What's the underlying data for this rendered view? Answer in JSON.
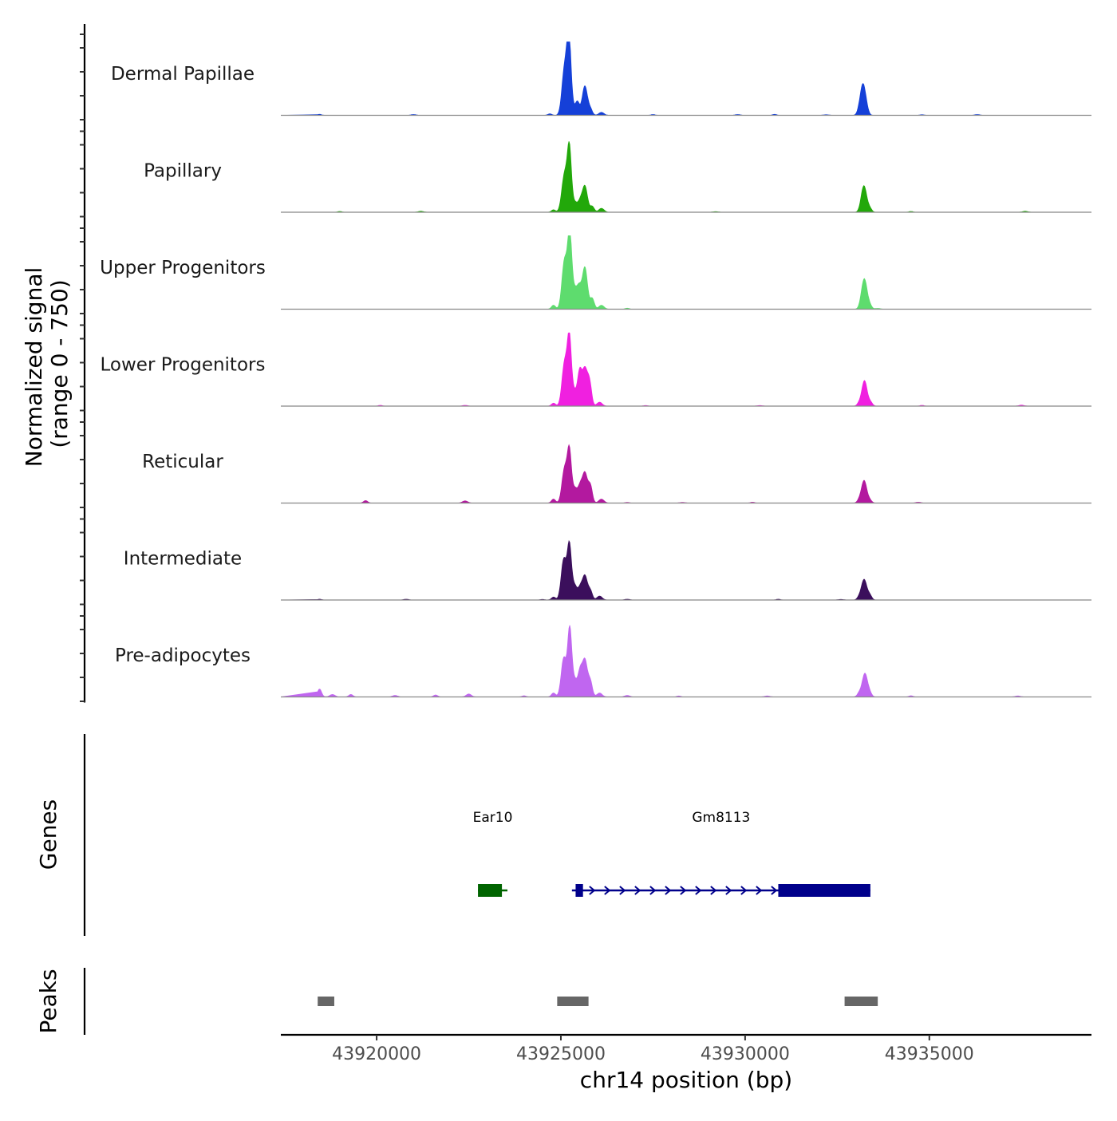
{
  "chart_data": {
    "type": "area",
    "title": "",
    "region": {
      "chrom": "chr14",
      "start": 43917400,
      "end": 43939400
    },
    "xlabel": "chr14 position (bp)",
    "x_ticks": [
      43920000,
      43925000,
      43930000,
      43935000
    ],
    "x_tick_labels": [
      "43920000",
      "43925000",
      "43930000",
      "43935000"
    ],
    "ylabel_line1": "Normalized signal",
    "ylabel_line2": "(range 0 - 750)",
    "ylim": [
      0,
      750
    ],
    "baseline_color": "#888888",
    "series": [
      {
        "name": "Dermal Papillae",
        "color": "#1540d8",
        "peaks": [
          [
            43924700,
            15
          ],
          [
            43925100,
            480
          ],
          [
            43925220,
            750
          ],
          [
            43925320,
            70
          ],
          [
            43925450,
            130
          ],
          [
            43925650,
            300
          ],
          [
            43925800,
            60
          ],
          [
            43926100,
            30
          ],
          [
            43933100,
            40
          ],
          [
            43933200,
            310
          ],
          [
            43933300,
            40
          ]
        ],
        "noise": [
          [
            43918450,
            10
          ],
          [
            43921000,
            8
          ],
          [
            43927500,
            8
          ],
          [
            43929800,
            8
          ],
          [
            43930800,
            10
          ],
          [
            43932200,
            6
          ],
          [
            43934800,
            6
          ],
          [
            43936300,
            8
          ]
        ]
      },
      {
        "name": "Papillary",
        "color": "#22a80a",
        "peaks": [
          [
            43924800,
            25
          ],
          [
            43925100,
            380
          ],
          [
            43925230,
            640
          ],
          [
            43925380,
            100
          ],
          [
            43925520,
            90
          ],
          [
            43925650,
            270
          ],
          [
            43925850,
            60
          ],
          [
            43926100,
            40
          ],
          [
            43933150,
            30
          ],
          [
            43933230,
            260
          ],
          [
            43933380,
            40
          ]
        ],
        "noise": [
          [
            43919000,
            8
          ],
          [
            43921200,
            10
          ],
          [
            43925000,
            20
          ],
          [
            43929200,
            6
          ],
          [
            43934500,
            8
          ],
          [
            43937600,
            10
          ]
        ]
      },
      {
        "name": "Upper Progenitors",
        "color": "#5edc6e",
        "peaks": [
          [
            43924800,
            40
          ],
          [
            43925100,
            500
          ],
          [
            43925240,
            750
          ],
          [
            43925380,
            200
          ],
          [
            43925500,
            180
          ],
          [
            43925650,
            430
          ],
          [
            43925850,
            110
          ],
          [
            43926100,
            40
          ],
          [
            43933150,
            40
          ],
          [
            43933240,
            300
          ],
          [
            43933380,
            40
          ]
        ],
        "noise": [
          [
            43926800,
            10
          ],
          [
            43933600,
            8
          ]
        ]
      },
      {
        "name": "Lower Progenitors",
        "color": "#f020e0",
        "peaks": [
          [
            43924800,
            30
          ],
          [
            43925100,
            440
          ],
          [
            43925230,
            670
          ],
          [
            43925370,
            150
          ],
          [
            43925510,
            320
          ],
          [
            43925650,
            380
          ],
          [
            43925780,
            220
          ],
          [
            43926050,
            40
          ],
          [
            43933100,
            30
          ],
          [
            43933240,
            260
          ],
          [
            43933400,
            40
          ]
        ],
        "noise": [
          [
            43920100,
            8
          ],
          [
            43922400,
            8
          ],
          [
            43927300,
            6
          ],
          [
            43930400,
            6
          ],
          [
            43934800,
            8
          ],
          [
            43937500,
            10
          ]
        ]
      },
      {
        "name": "Reticular",
        "color": "#b3199f",
        "peaks": [
          [
            43924800,
            40
          ],
          [
            43925100,
            350
          ],
          [
            43925230,
            510
          ],
          [
            43925380,
            150
          ],
          [
            43925520,
            140
          ],
          [
            43925650,
            310
          ],
          [
            43925800,
            170
          ],
          [
            43926100,
            40
          ],
          [
            43933100,
            30
          ],
          [
            43933230,
            230
          ],
          [
            43933380,
            30
          ]
        ],
        "noise": [
          [
            43919700,
            25
          ],
          [
            43922400,
            22
          ],
          [
            43926800,
            6
          ],
          [
            43928300,
            6
          ],
          [
            43930200,
            8
          ],
          [
            43934700,
            8
          ]
        ]
      },
      {
        "name": "Intermediate",
        "color": "#3b0f5c",
        "peaks": [
          [
            43924800,
            30
          ],
          [
            43925080,
            420
          ],
          [
            43925230,
            540
          ],
          [
            43925370,
            150
          ],
          [
            43925520,
            100
          ],
          [
            43925650,
            250
          ],
          [
            43925800,
            90
          ],
          [
            43926050,
            40
          ],
          [
            43933100,
            30
          ],
          [
            43933230,
            210
          ],
          [
            43933380,
            50
          ]
        ],
        "noise": [
          [
            43918450,
            8
          ],
          [
            43920800,
            8
          ],
          [
            43924500,
            6
          ],
          [
            43926800,
            8
          ],
          [
            43930900,
            8
          ],
          [
            43932600,
            6
          ]
        ]
      },
      {
        "name": "Pre-adipocytes",
        "color": "#c066f0",
        "peaks": [
          [
            43924800,
            40
          ],
          [
            43925080,
            400
          ],
          [
            43925240,
            680
          ],
          [
            43925380,
            170
          ],
          [
            43925520,
            220
          ],
          [
            43925650,
            380
          ],
          [
            43925800,
            150
          ],
          [
            43926050,
            40
          ],
          [
            43933100,
            40
          ],
          [
            43933250,
            240
          ],
          [
            43933380,
            40
          ]
        ],
        "noise": [
          [
            43918450,
            80
          ],
          [
            43918800,
            25
          ],
          [
            43919300,
            25
          ],
          [
            43920500,
            15
          ],
          [
            43921600,
            20
          ],
          [
            43922500,
            30
          ],
          [
            43924000,
            12
          ],
          [
            43926800,
            15
          ],
          [
            43928200,
            10
          ],
          [
            43930600,
            10
          ],
          [
            43934500,
            12
          ],
          [
            43937400,
            10
          ]
        ]
      }
    ],
    "genes_track_label": "Genes",
    "genes": [
      {
        "name": "Ear10",
        "strand": "-",
        "color": "#006400",
        "start": 43922750,
        "end": 43923550,
        "exons": [
          [
            43922750,
            43923400
          ]
        ]
      },
      {
        "name": "Gm8113",
        "strand": "+",
        "color": "#00008b",
        "start": 43925300,
        "end": 43933400,
        "exons": [
          [
            43925400,
            43925600
          ],
          [
            43930900,
            43933400
          ]
        ]
      }
    ],
    "peaks_track_label": "Peaks",
    "peaks_color": "#666666",
    "peaks": [
      [
        43918400,
        43918850
      ],
      [
        43924900,
        43925750
      ],
      [
        43932700,
        43933600
      ]
    ]
  }
}
